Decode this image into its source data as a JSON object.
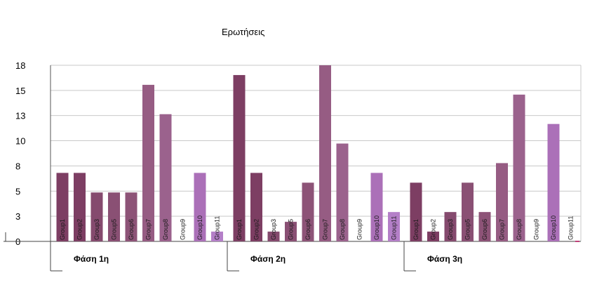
{
  "chart_data": {
    "type": "bar",
    "title": "Ερωτήσεις",
    "ylim": [
      0,
      18
    ],
    "yticks": [
      "0",
      "3",
      "5",
      "8",
      "10",
      "13",
      "15",
      "18"
    ],
    "ytick_values": [
      0,
      2.57,
      5.14,
      7.71,
      10.29,
      12.86,
      15.43,
      18
    ],
    "grid": true,
    "legend": "none",
    "groups": [
      {
        "label": "Φάση 1η",
        "bars": [
          {
            "category": "Group1",
            "value": 7,
            "color": "#7d3e63"
          },
          {
            "category": "Group2",
            "value": 7,
            "color": "#7d3e63"
          },
          {
            "category": "Group3",
            "value": 5,
            "color": "#854a6e"
          },
          {
            "category": "Group5",
            "value": 5,
            "color": "#8a5074"
          },
          {
            "category": "Group6",
            "value": 5,
            "color": "#8d5377"
          },
          {
            "category": "Group7",
            "value": 16,
            "color": "#965c83"
          },
          {
            "category": "Group8",
            "value": 13,
            "color": "#9b628d"
          },
          {
            "category": "Group9",
            "value": 0,
            "color": "#a568a0"
          },
          {
            "category": "Group10",
            "value": 7,
            "color": "#ab70b8"
          },
          {
            "category": "Group11",
            "value": 1,
            "color": "#b47fc8"
          }
        ]
      },
      {
        "label": "Φάση 2η",
        "bars": [
          {
            "category": "Group1",
            "value": 17,
            "color": "#7d3e63"
          },
          {
            "category": "Group2",
            "value": 7,
            "color": "#7d3e63"
          },
          {
            "category": "Group3",
            "value": 1,
            "color": "#854a6e"
          },
          {
            "category": "Group5",
            "value": 2,
            "color": "#8a5074"
          },
          {
            "category": "Group6",
            "value": 6,
            "color": "#8d5377"
          },
          {
            "category": "Group7",
            "value": 18,
            "color": "#965c83"
          },
          {
            "category": "Group8",
            "value": 10,
            "color": "#9b628d"
          },
          {
            "category": "Group9",
            "value": 0,
            "color": "#a568a0"
          },
          {
            "category": "Group10",
            "value": 7,
            "color": "#ab70b8"
          },
          {
            "category": "Group11",
            "value": 3,
            "color": "#b47fc8"
          }
        ]
      },
      {
        "label": "Φάση 3η",
        "bars": [
          {
            "category": "Group1",
            "value": 6,
            "color": "#7d3e63"
          },
          {
            "category": "Group2",
            "value": 1,
            "color": "#7d3e63"
          },
          {
            "category": "Group3",
            "value": 3,
            "color": "#854a6e"
          },
          {
            "category": "Group5",
            "value": 6,
            "color": "#8a5074"
          },
          {
            "category": "Group6",
            "value": 3,
            "color": "#8d5377"
          },
          {
            "category": "Group7",
            "value": 8,
            "color": "#965c83"
          },
          {
            "category": "Group8",
            "value": 15,
            "color": "#9b628d"
          },
          {
            "category": "Group9",
            "value": 0,
            "color": "#a568a0"
          },
          {
            "category": "Group10",
            "value": 12,
            "color": "#ab70b8"
          },
          {
            "category": "Group11",
            "value": 0,
            "color": "#b47fc8"
          }
        ]
      }
    ]
  }
}
